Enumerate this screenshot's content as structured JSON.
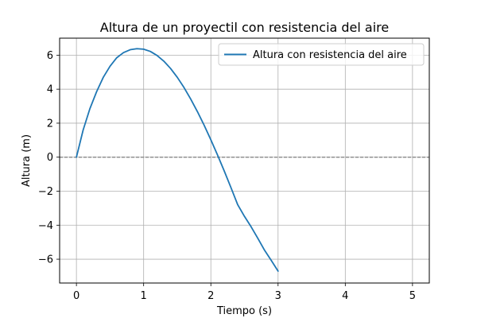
{
  "chart_data": {
    "type": "line",
    "title": "Altura de un proyectil con resistencia del aire",
    "xlabel": "Tiempo (s)",
    "ylabel": "Altura (m)",
    "xlim": [
      -0.25,
      5.25
    ],
    "ylim": [
      -7.4,
      7.0
    ],
    "xticks": [
      0,
      1,
      2,
      3,
      4,
      5
    ],
    "xtick_labels": [
      "0",
      "1",
      "2",
      "3",
      "4",
      "5"
    ],
    "yticks": [
      -6,
      -4,
      -2,
      0,
      2,
      4,
      6
    ],
    "ytick_labels": [
      "−6",
      "−4",
      "−2",
      "0",
      "2",
      "4",
      "6"
    ],
    "grid": true,
    "legend_position": "top-right",
    "series": [
      {
        "name": "Altura con resistencia del aire",
        "color": "#1f77b4",
        "x": [
          0.0,
          0.1,
          0.2,
          0.3,
          0.4,
          0.5,
          0.6,
          0.7,
          0.8,
          0.9,
          1.0,
          1.1,
          1.2,
          1.3,
          1.4,
          1.5,
          1.6,
          1.7,
          1.8,
          1.9,
          2.0,
          2.1,
          2.2,
          2.3,
          2.4,
          2.5,
          2.6,
          2.7,
          2.8,
          2.9,
          3.0
        ],
        "y": [
          0.0,
          1.6,
          2.85,
          3.85,
          4.7,
          5.35,
          5.85,
          6.15,
          6.32,
          6.38,
          6.35,
          6.22,
          5.98,
          5.65,
          5.22,
          4.7,
          4.1,
          3.42,
          2.68,
          1.88,
          1.02,
          0.12,
          -0.82,
          -1.8,
          -2.8,
          -3.48,
          -4.1,
          -4.78,
          -5.48,
          -6.08,
          -6.7
        ]
      }
    ],
    "reference_lines": [
      {
        "type": "horizontal",
        "y": 0,
        "color": "#808080",
        "style": "dashed"
      }
    ]
  }
}
